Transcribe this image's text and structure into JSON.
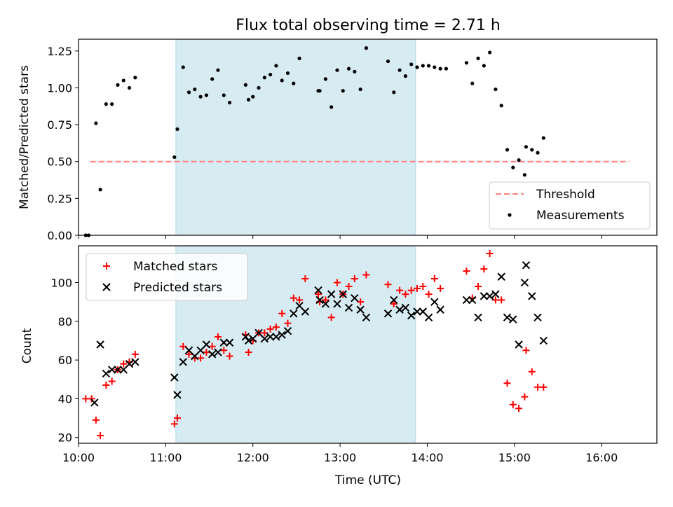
{
  "chart_data": [
    {
      "type": "scatter",
      "title": "Flux total observing time = 2.71 h",
      "xlabel": "",
      "ylabel": "Matched/Predicted stars",
      "ylim": [
        0,
        1.33
      ],
      "xlim": [
        "10:00",
        "16:38"
      ],
      "shaded_interval": [
        "11:07",
        "13:52"
      ],
      "grid": false,
      "legend": "lower-right",
      "yticks": [
        "0.00",
        "0.25",
        "0.50",
        "0.75",
        "1.00",
        "1.25"
      ],
      "threshold": {
        "name": "Threshold",
        "value": 0.5,
        "x_start": "10:08",
        "x_end": "16:19",
        "color": "#ff7f7f"
      },
      "series": [
        {
          "name": "Measurements",
          "color": "#000000",
          "points": [
            [
              "10:05",
              0.0
            ],
            [
              "10:07",
              0.0
            ],
            [
              "10:12",
              0.76
            ],
            [
              "10:15",
              0.31
            ],
            [
              "10:19",
              0.89
            ],
            [
              "10:23",
              0.89
            ],
            [
              "10:27",
              1.02
            ],
            [
              "10:31",
              1.05
            ],
            [
              "10:35",
              1.0
            ],
            [
              "10:39",
              1.07
            ],
            [
              "11:06",
              0.53
            ],
            [
              "11:08",
              0.72
            ],
            [
              "11:12",
              1.14
            ],
            [
              "11:16",
              0.97
            ],
            [
              "11:20",
              0.99
            ],
            [
              "11:24",
              0.94
            ],
            [
              "11:28",
              0.95
            ],
            [
              "11:32",
              1.06
            ],
            [
              "11:36",
              1.12
            ],
            [
              "11:40",
              0.95
            ],
            [
              "11:44",
              0.9
            ],
            [
              "11:55",
              1.02
            ],
            [
              "11:57",
              0.92
            ],
            [
              "12:00",
              0.94
            ],
            [
              "12:04",
              1.0
            ],
            [
              "12:08",
              1.07
            ],
            [
              "12:12",
              1.09
            ],
            [
              "12:16",
              1.15
            ],
            [
              "12:20",
              1.05
            ],
            [
              "12:24",
              1.1
            ],
            [
              "12:28",
              1.03
            ],
            [
              "12:32",
              1.2
            ],
            [
              "12:45",
              0.98
            ],
            [
              "12:46",
              0.98
            ],
            [
              "12:50",
              1.06
            ],
            [
              "12:54",
              0.87
            ],
            [
              "12:58",
              1.12
            ],
            [
              "13:02",
              0.98
            ],
            [
              "13:06",
              1.13
            ],
            [
              "13:10",
              1.11
            ],
            [
              "13:14",
              0.99
            ],
            [
              "13:18",
              1.27
            ],
            [
              "13:33",
              1.18
            ],
            [
              "13:37",
              0.97
            ],
            [
              "13:41",
              1.12
            ],
            [
              "13:45",
              1.08
            ],
            [
              "13:49",
              1.16
            ],
            [
              "13:53",
              1.14
            ],
            [
              "13:57",
              1.15
            ],
            [
              "14:01",
              1.15
            ],
            [
              "14:05",
              1.14
            ],
            [
              "14:09",
              1.13
            ],
            [
              "14:13",
              1.13
            ],
            [
              "14:27",
              1.17
            ],
            [
              "14:31",
              1.03
            ],
            [
              "14:35",
              1.2
            ],
            [
              "14:39",
              1.15
            ],
            [
              "14:43",
              1.24
            ],
            [
              "14:47",
              0.99
            ],
            [
              "14:51",
              0.88
            ],
            [
              "14:55",
              0.58
            ],
            [
              "14:59",
              0.46
            ],
            [
              "15:03",
              0.51
            ],
            [
              "15:07",
              0.41
            ],
            [
              "15:08",
              0.6
            ],
            [
              "15:12",
              0.58
            ],
            [
              "15:16",
              0.56
            ],
            [
              "15:20",
              0.66
            ]
          ]
        }
      ]
    },
    {
      "type": "scatter",
      "xlabel": "Time (UTC)",
      "ylabel": "Count",
      "ylim": [
        17,
        119
      ],
      "xlim": [
        "10:00",
        "16:38"
      ],
      "shaded_interval": [
        "11:07",
        "13:52"
      ],
      "grid": false,
      "legend": "top-left",
      "xticks": [
        "10:00",
        "11:00",
        "12:00",
        "13:00",
        "14:00",
        "15:00",
        "16:00"
      ],
      "yticks": [
        "20",
        "40",
        "60",
        "80",
        "100"
      ],
      "series": [
        {
          "name": "Matched stars",
          "marker": "plus",
          "color": "#ff0000",
          "points": [
            [
              "10:05",
              40
            ],
            [
              "10:09",
              40
            ],
            [
              "10:12",
              29
            ],
            [
              "10:15",
              21
            ],
            [
              "10:19",
              47
            ],
            [
              "10:23",
              49
            ],
            [
              "10:27",
              55
            ],
            [
              "10:31",
              58
            ],
            [
              "10:35",
              59
            ],
            [
              "10:39",
              63
            ],
            [
              "11:06",
              27
            ],
            [
              "11:08",
              30
            ],
            [
              "11:12",
              67
            ],
            [
              "11:16",
              63
            ],
            [
              "11:20",
              61
            ],
            [
              "11:24",
              61
            ],
            [
              "11:28",
              64
            ],
            [
              "11:32",
              67
            ],
            [
              "11:36",
              72
            ],
            [
              "11:40",
              65
            ],
            [
              "11:44",
              62
            ],
            [
              "11:55",
              73
            ],
            [
              "11:57",
              64
            ],
            [
              "12:00",
              70
            ],
            [
              "12:04",
              74
            ],
            [
              "12:08",
              74
            ],
            [
              "12:12",
              76
            ],
            [
              "12:16",
              77
            ],
            [
              "12:20",
              84
            ],
            [
              "12:24",
              79
            ],
            [
              "12:28",
              92
            ],
            [
              "12:32",
              91
            ],
            [
              "12:36",
              102
            ],
            [
              "12:45",
              94
            ],
            [
              "12:46",
              90
            ],
            [
              "12:50",
              91
            ],
            [
              "12:54",
              82
            ],
            [
              "12:58",
              100
            ],
            [
              "13:02",
              94
            ],
            [
              "13:06",
              98
            ],
            [
              "13:10",
              102
            ],
            [
              "13:14",
              90
            ],
            [
              "13:18",
              104
            ],
            [
              "13:33",
              99
            ],
            [
              "13:37",
              89
            ],
            [
              "13:41",
              96
            ],
            [
              "13:45",
              94
            ],
            [
              "13:49",
              96
            ],
            [
              "13:53",
              97
            ],
            [
              "13:57",
              98
            ],
            [
              "14:01",
              94
            ],
            [
              "14:05",
              102
            ],
            [
              "14:09",
              97
            ],
            [
              "14:27",
              106
            ],
            [
              "14:31",
              92
            ],
            [
              "14:35",
              98
            ],
            [
              "14:39",
              107
            ],
            [
              "14:43",
              115
            ],
            [
              "14:47",
              91
            ],
            [
              "14:51",
              91
            ],
            [
              "14:55",
              48
            ],
            [
              "14:59",
              37
            ],
            [
              "15:03",
              35
            ],
            [
              "15:07",
              41
            ],
            [
              "15:08",
              65
            ],
            [
              "15:12",
              54
            ],
            [
              "15:16",
              46
            ],
            [
              "15:20",
              46
            ]
          ]
        },
        {
          "name": "Predicted stars",
          "marker": "x",
          "color": "#000000",
          "points": [
            [
              "10:11",
              38
            ],
            [
              "10:15",
              68
            ],
            [
              "10:19",
              53
            ],
            [
              "10:23",
              55
            ],
            [
              "10:27",
              55
            ],
            [
              "10:31",
              55
            ],
            [
              "10:35",
              58
            ],
            [
              "10:39",
              59
            ],
            [
              "11:06",
              51
            ],
            [
              "11:08",
              42
            ],
            [
              "11:12",
              59
            ],
            [
              "11:16",
              65
            ],
            [
              "11:20",
              62
            ],
            [
              "11:24",
              65
            ],
            [
              "11:28",
              68
            ],
            [
              "11:32",
              63
            ],
            [
              "11:36",
              64
            ],
            [
              "11:40",
              69
            ],
            [
              "11:44",
              69
            ],
            [
              "11:55",
              72
            ],
            [
              "11:57",
              70
            ],
            [
              "12:00",
              71
            ],
            [
              "12:04",
              74
            ],
            [
              "12:08",
              71
            ],
            [
              "12:12",
              72
            ],
            [
              "12:16",
              72
            ],
            [
              "12:20",
              73
            ],
            [
              "12:24",
              75
            ],
            [
              "12:28",
              84
            ],
            [
              "12:32",
              88
            ],
            [
              "12:36",
              85
            ],
            [
              "12:45",
              96
            ],
            [
              "12:46",
              91
            ],
            [
              "12:50",
              89
            ],
            [
              "12:54",
              94
            ],
            [
              "12:58",
              89
            ],
            [
              "13:02",
              94
            ],
            [
              "13:06",
              87
            ],
            [
              "13:10",
              92
            ],
            [
              "13:14",
              86
            ],
            [
              "13:18",
              82
            ],
            [
              "13:33",
              84
            ],
            [
              "13:37",
              91
            ],
            [
              "13:41",
              86
            ],
            [
              "13:45",
              87
            ],
            [
              "13:49",
              83
            ],
            [
              "13:53",
              85
            ],
            [
              "13:57",
              85
            ],
            [
              "14:01",
              82
            ],
            [
              "14:05",
              90
            ],
            [
              "14:09",
              86
            ],
            [
              "14:27",
              91
            ],
            [
              "14:31",
              91
            ],
            [
              "14:35",
              82
            ],
            [
              "14:39",
              93
            ],
            [
              "14:43",
              93
            ],
            [
              "14:47",
              94
            ],
            [
              "14:51",
              103
            ],
            [
              "14:55",
              82
            ],
            [
              "14:59",
              81
            ],
            [
              "15:03",
              68
            ],
            [
              "15:07",
              100
            ],
            [
              "15:08",
              109
            ],
            [
              "15:12",
              93
            ],
            [
              "15:16",
              82
            ],
            [
              "15:20",
              70
            ]
          ]
        }
      ]
    }
  ]
}
